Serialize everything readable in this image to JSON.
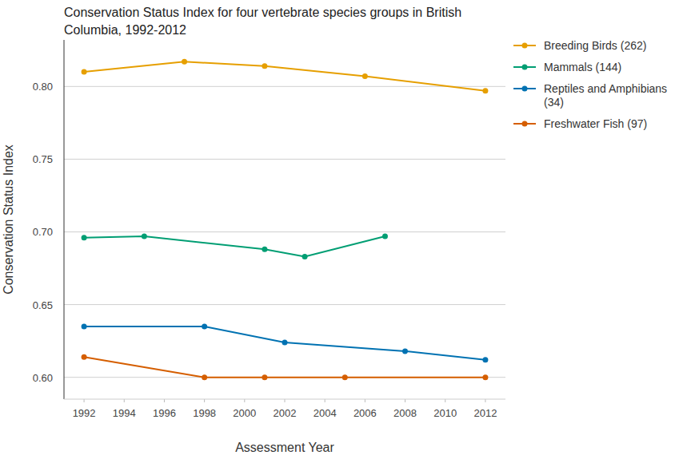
{
  "chart_data": {
    "type": "line",
    "title": "Conservation Status Index for four vertebrate species groups in British Columbia, 1992-2012",
    "x_label": "Assessment Year",
    "y_label": "Conservation Status Index",
    "xlim": [
      1991,
      2013
    ],
    "xticks": [
      1992,
      1994,
      1996,
      1998,
      2000,
      2002,
      2004,
      2006,
      2008,
      2010,
      2012
    ],
    "ylim": [
      0.585,
      0.832
    ],
    "yticks": [
      {
        "value": 0.6,
        "label": "0.60"
      },
      0.65,
      {
        "value": 0.7,
        "label": "0.70"
      },
      0.75,
      {
        "value": 0.8,
        "label": "0.80"
      }
    ],
    "grid": true,
    "legend": "right",
    "marker": "circle",
    "series": [
      {
        "name": "Breeding Birds (262)",
        "color": "#e69f00",
        "x": [
          1992,
          1997,
          2001,
          2006,
          2012
        ],
        "values": [
          0.81,
          0.817,
          0.814,
          0.807,
          0.797
        ]
      },
      {
        "name": "Mammals (144)",
        "color": "#009e73",
        "x": [
          1992,
          1995,
          2001,
          2003,
          2007
        ],
        "values": [
          0.696,
          0.697,
          0.688,
          0.683,
          0.697
        ]
      },
      {
        "name": "Reptiles and Amphibians (34)",
        "color": "#0072b2",
        "x": [
          1992,
          1998,
          2002,
          2008,
          2012
        ],
        "values": [
          0.635,
          0.635,
          0.624,
          0.618,
          0.612
        ]
      },
      {
        "name": "Freshwater Fish (97)",
        "color": "#d55e00",
        "x": [
          1992,
          1998,
          2001,
          2005,
          2012
        ],
        "values": [
          0.614,
          0.6,
          0.6,
          0.6,
          0.6
        ]
      }
    ]
  }
}
